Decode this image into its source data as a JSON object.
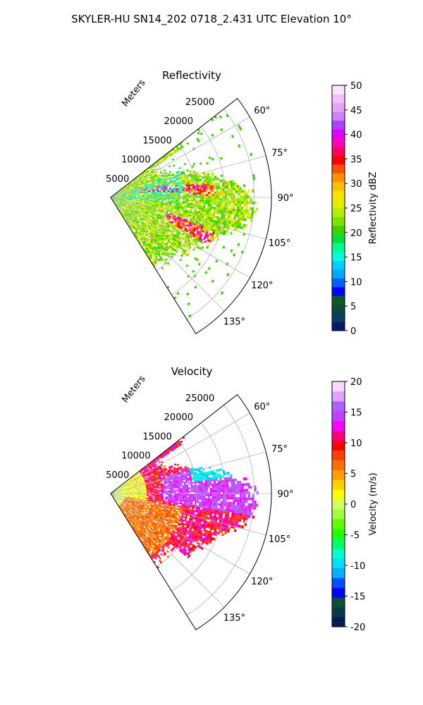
{
  "figure_title": "SKYLER-HU  SN14_202  0718_2.431 UTC Elevation 10°",
  "chart_data": [
    {
      "type": "heatmap",
      "title": "Reflectivity",
      "radial_label": "Meters",
      "radial_ticks": [
        "5000",
        "10000",
        "15000",
        "20000",
        "25000"
      ],
      "azimuth_ticks": [
        "60°",
        "75°",
        "90°",
        "105°",
        "120°",
        "135°"
      ],
      "azimuth_range_deg": [
        52,
        148
      ],
      "range_max_m": 28000,
      "colorbar": {
        "label": "Reflectivity dBZ",
        "range": [
          0,
          50
        ],
        "ticks": [
          "0",
          "5",
          "10",
          "15",
          "20",
          "25",
          "30",
          "35",
          "40",
          "45",
          "50"
        ],
        "colors": [
          "#071a6a",
          "#0b3b64",
          "#0a4a3a",
          "#0a5a2a",
          "#0000ff",
          "#0060ff",
          "#00a8ff",
          "#00d0ff",
          "#00ffd8",
          "#00ff90",
          "#00e040",
          "#40d000",
          "#80e000",
          "#b0f000",
          "#e0f000",
          "#ffe000",
          "#ffc000",
          "#ff9000",
          "#ff5000",
          "#ff0000",
          "#ff0060",
          "#ff00c0",
          "#e000ff",
          "#b040ff",
          "#d080ff",
          "#e8a0ff",
          "#f0c0ff",
          "#fbe4ff"
        ]
      }
    },
    {
      "type": "heatmap",
      "title": "Velocity",
      "radial_label": "Meters",
      "radial_ticks": [
        "5000",
        "10000",
        "15000",
        "20000",
        "25000"
      ],
      "azimuth_ticks": [
        "60°",
        "75°",
        "90°",
        "105°",
        "120°",
        "135°"
      ],
      "azimuth_range_deg": [
        52,
        148
      ],
      "range_max_m": 28000,
      "colorbar": {
        "label": "Velocity (m/s)",
        "range": [
          -20,
          20
        ],
        "ticks": [
          "-20",
          "-15",
          "-10",
          "-5",
          "0",
          "5",
          "10",
          "15",
          "20"
        ],
        "colors": [
          "#061a5c",
          "#0a3a4a",
          "#0a5040",
          "#0000ff",
          "#0050ff",
          "#00b0ff",
          "#00e0ff",
          "#00ffd0",
          "#00ff60",
          "#20ff00",
          "#60ff00",
          "#a0ff40",
          "#d0ff60",
          "#ffff00",
          "#ffd000",
          "#ffa000",
          "#ff7000",
          "#ff4000",
          "#ff0000",
          "#ff0080",
          "#ff00ff",
          "#c040ff",
          "#b060ff",
          "#e0a0ff",
          "#f8d8ff"
        ]
      }
    }
  ]
}
